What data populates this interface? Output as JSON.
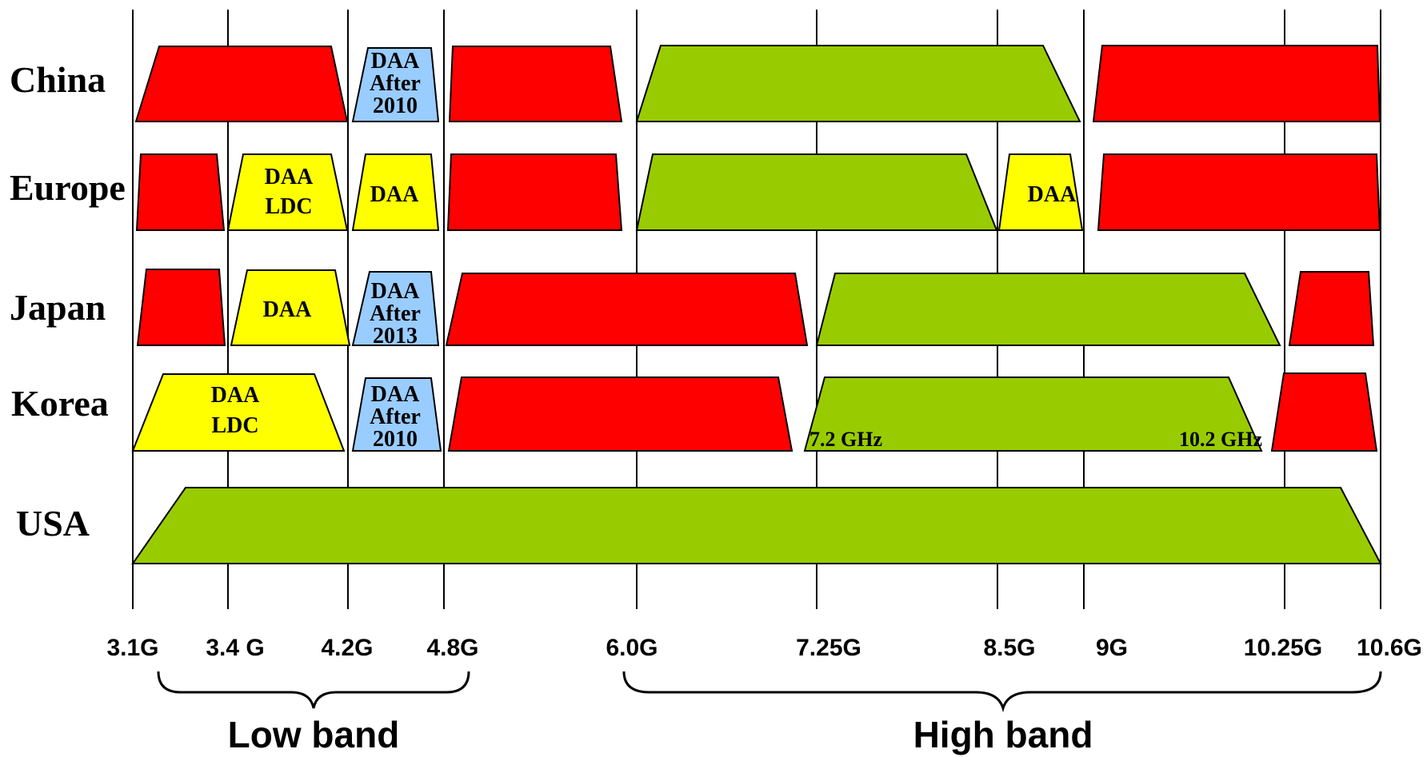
{
  "colors": {
    "restricted": "#ff0000",
    "allowed": "#99cc00",
    "daa": "#ffff00",
    "daa_future": "#99ccff",
    "line": "#000000"
  },
  "axis": {
    "ticks": [
      "3.1G",
      "3.4 G",
      "4.2G",
      "4.8G",
      "6.0G",
      "7.25G",
      "8.5G",
      "9G",
      "10.25G",
      "10.6G"
    ]
  },
  "bands": {
    "low": "Low band",
    "high": "High band"
  },
  "regions": [
    {
      "name": "China",
      "segments": [
        {
          "type": "restricted",
          "text": []
        },
        {
          "type": "daa_future",
          "text": [
            "DAA",
            "After",
            "2010"
          ]
        },
        {
          "type": "restricted",
          "text": []
        },
        {
          "type": "allowed",
          "text": []
        },
        {
          "type": "restricted",
          "text": []
        }
      ]
    },
    {
      "name": "Europe",
      "segments": [
        {
          "type": "restricted",
          "text": []
        },
        {
          "type": "daa",
          "text": [
            "DAA",
            "LDC"
          ]
        },
        {
          "type": "daa",
          "text": [
            "DAA"
          ]
        },
        {
          "type": "restricted",
          "text": []
        },
        {
          "type": "allowed",
          "text": []
        },
        {
          "type": "daa",
          "text": [
            "DAA"
          ]
        },
        {
          "type": "restricted",
          "text": []
        }
      ]
    },
    {
      "name": "Japan",
      "segments": [
        {
          "type": "restricted",
          "text": []
        },
        {
          "type": "daa",
          "text": [
            "DAA"
          ]
        },
        {
          "type": "daa_future",
          "text": [
            "DAA",
            "After",
            "2013"
          ]
        },
        {
          "type": "restricted",
          "text": []
        },
        {
          "type": "allowed",
          "text": []
        },
        {
          "type": "restricted",
          "text": []
        }
      ]
    },
    {
      "name": "Korea",
      "segments": [
        {
          "type": "daa",
          "text": [
            "DAA",
            "LDC"
          ]
        },
        {
          "type": "daa_future",
          "text": [
            "DAA",
            "After",
            "2010"
          ]
        },
        {
          "type": "restricted",
          "text": []
        },
        {
          "type": "allowed",
          "text": []
        },
        {
          "type": "restricted",
          "text": []
        }
      ],
      "notes": [
        "7.2 GHz",
        "10.2 GHz"
      ]
    },
    {
      "name": "USA",
      "segments": [
        {
          "type": "allowed",
          "text": []
        }
      ]
    }
  ]
}
